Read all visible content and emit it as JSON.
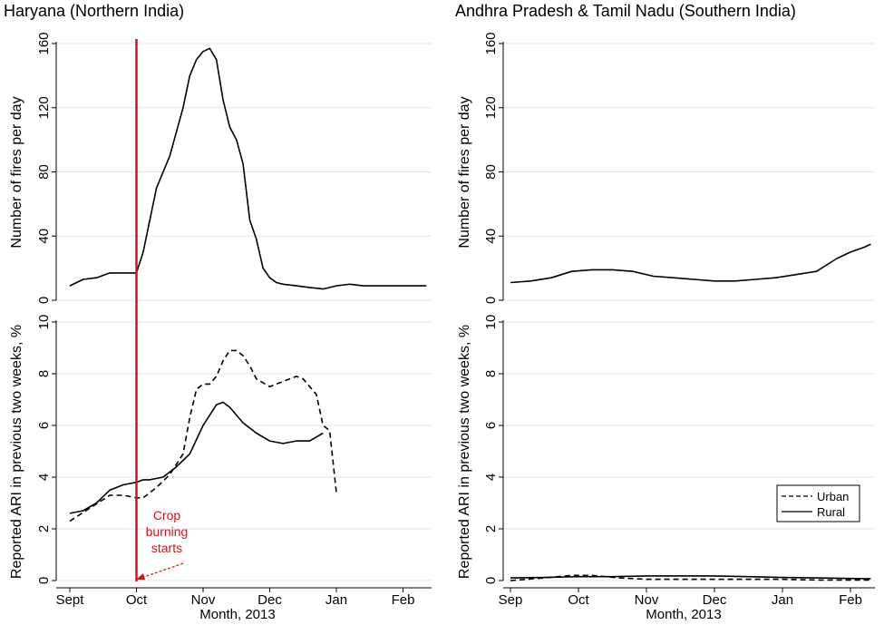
{
  "figure": {
    "xlabel": "Month, 2013",
    "colors": {
      "fire": "#000000",
      "marker": "#d0141c",
      "grid": "#dbe7ee"
    }
  },
  "annotation": {
    "text_lines": [
      "Crop",
      "burning",
      "starts"
    ],
    "x_month": "Oct"
  },
  "legend": {
    "urban": "Urban",
    "rural": "Rural",
    "placement": "right, lower-right panel"
  },
  "chart_data": [
    {
      "id": "left",
      "type": "line",
      "title": "Haryana (Northern India)",
      "x_ticks": [
        "Sept",
        "Oct",
        "Nov",
        "Dec",
        "Jan",
        "Feb"
      ],
      "xlim": [
        -0.1,
        5.4
      ],
      "top": {
        "ylabel": "Number of fires per day",
        "ylim": [
          0,
          160
        ],
        "yticks": [
          0,
          40,
          80,
          120,
          160
        ],
        "grid": true,
        "series": [
          {
            "style": "solid",
            "x": [
              0,
              0.2,
              0.4,
              0.6,
              0.8,
              1.0,
              1.1,
              1.3,
              1.5,
              1.6,
              1.7,
              1.8,
              1.9,
              2.0,
              2.1,
              2.2,
              2.3,
              2.4,
              2.5,
              2.6,
              2.7,
              2.8,
              2.9,
              3.0,
              3.1,
              3.2,
              3.4,
              3.6,
              3.8,
              4.0,
              4.2,
              4.4,
              4.6,
              4.8,
              5.0,
              5.2,
              5.35
            ],
            "y": [
              9,
              13,
              14,
              17,
              17,
              17,
              30,
              70,
              90,
              105,
              120,
              140,
              150,
              155,
              157,
              150,
              125,
              108,
              100,
              85,
              50,
              38,
              20,
              14,
              11,
              10,
              9,
              8,
              7,
              9,
              10,
              9,
              9,
              9,
              9,
              9,
              9
            ]
          }
        ]
      },
      "bottom": {
        "ylabel": "Reported ARI in previous two weeks, %",
        "ylim": [
          0,
          10
        ],
        "yticks": [
          0,
          2,
          4,
          6,
          8,
          10
        ],
        "grid": true,
        "series": [
          {
            "style": "dashed",
            "x": [
              0,
              0.3,
              0.6,
              0.8,
              1.0,
              1.1,
              1.3,
              1.5,
              1.7,
              1.8,
              1.9,
              2.0,
              2.1,
              2.2,
              2.3,
              2.4,
              2.5,
              2.6,
              2.7,
              2.8,
              3.0,
              3.2,
              3.4,
              3.5,
              3.7,
              3.8,
              3.9,
              4.0
            ],
            "y": [
              2.3,
              2.8,
              3.3,
              3.3,
              3.2,
              3.2,
              3.6,
              4.1,
              4.9,
              6.3,
              7.4,
              7.6,
              7.6,
              7.9,
              8.5,
              8.9,
              8.9,
              8.7,
              8.3,
              7.8,
              7.5,
              7.7,
              7.9,
              7.8,
              7.2,
              6.0,
              5.8,
              3.4
            ]
          },
          {
            "style": "solid",
            "x": [
              0,
              0.2,
              0.4,
              0.6,
              0.8,
              1.0,
              1.1,
              1.2,
              1.4,
              1.6,
              1.8,
              2.0,
              2.2,
              2.3,
              2.4,
              2.6,
              2.8,
              3.0,
              3.2,
              3.4,
              3.6,
              3.8
            ],
            "y": [
              2.6,
              2.7,
              3.0,
              3.5,
              3.7,
              3.8,
              3.9,
              3.9,
              4.0,
              4.4,
              4.9,
              6.0,
              6.8,
              6.9,
              6.7,
              6.1,
              5.7,
              5.4,
              5.3,
              5.4,
              5.4,
              5.7
            ]
          }
        ]
      }
    },
    {
      "id": "right",
      "type": "line",
      "title": "Andhra Pradesh & Tamil Nadu (Southern India)",
      "x_ticks": [
        "Sep",
        "Oct",
        "Nov",
        "Dec",
        "Jan",
        "Feb"
      ],
      "xlim": [
        -0.1,
        5.35
      ],
      "top": {
        "ylabel": "Number of fires per day",
        "ylim": [
          0,
          160
        ],
        "yticks": [
          0,
          40,
          80,
          120,
          160
        ],
        "grid": true,
        "series": [
          {
            "style": "solid",
            "x": [
              0,
              0.3,
              0.6,
              0.9,
              1.2,
              1.5,
              1.8,
              2.1,
              2.4,
              2.7,
              3.0,
              3.3,
              3.6,
              3.9,
              4.2,
              4.5,
              4.8,
              5.0,
              5.2,
              5.3
            ],
            "y": [
              11,
              12,
              14,
              18,
              19,
              19,
              18,
              15,
              14,
              13,
              12,
              12,
              13,
              14,
              16,
              18,
              26,
              30,
              33,
              35
            ]
          }
        ]
      },
      "bottom": {
        "ylabel": "Reported ARI in previous two weeks, %",
        "ylim": [
          0,
          10
        ],
        "yticks": [
          0,
          2,
          4,
          6,
          8,
          10
        ],
        "grid": true,
        "series": [
          {
            "style": "dashed",
            "x": [
              0,
              0.5,
              0.9,
              1.2,
              1.6,
              2.0,
              2.6,
              3.0,
              3.5,
              4.0,
              4.5,
              5.0,
              5.3
            ],
            "y": [
              0.0,
              0.1,
              0.2,
              0.2,
              0.1,
              0.05,
              0.05,
              0.05,
              0.05,
              0.05,
              0.02,
              0.02,
              0.02
            ]
          },
          {
            "style": "solid",
            "x": [
              0,
              0.5,
              1.0,
              1.5,
              2.0,
              2.5,
              3.0,
              3.5,
              4.0,
              4.5,
              5.0,
              5.3
            ],
            "y": [
              0.1,
              0.12,
              0.15,
              0.15,
              0.18,
              0.18,
              0.18,
              0.15,
              0.12,
              0.1,
              0.08,
              0.07
            ]
          }
        ]
      }
    }
  ]
}
